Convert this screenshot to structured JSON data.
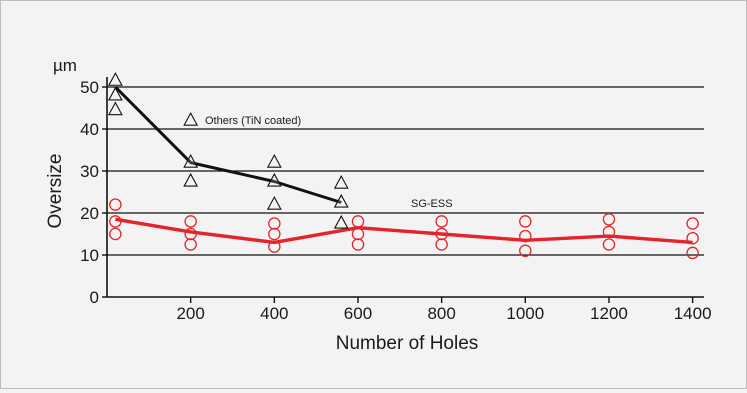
{
  "chart_data": {
    "type": "line",
    "title": "",
    "unit_label": "µm",
    "xlabel": "Number of Holes",
    "ylabel": "Oversize",
    "xlim": [
      0,
      1420
    ],
    "ylim": [
      0,
      55
    ],
    "xticks": [
      200,
      400,
      600,
      800,
      1000,
      1200,
      1400
    ],
    "yticks": [
      0,
      10,
      20,
      30,
      40,
      50
    ],
    "gridlines_y": [
      10,
      20,
      30,
      40,
      50
    ],
    "grid": "horizontal",
    "colors": {
      "others": "#111111",
      "sgess": "#e5232a"
    },
    "series": [
      {
        "name": "Others (TiN coated)",
        "color": "#111111",
        "marker": "triangle",
        "line": [
          [
            20,
            50
          ],
          [
            200,
            32
          ],
          [
            400,
            27.5
          ],
          [
            560,
            22.5
          ]
        ],
        "points": [
          [
            20,
            51.5
          ],
          [
            20,
            48
          ],
          [
            20,
            44.5
          ],
          [
            200,
            42
          ],
          [
            200,
            32
          ],
          [
            200,
            27.5
          ],
          [
            400,
            32
          ],
          [
            400,
            27.5
          ],
          [
            400,
            22
          ],
          [
            560,
            27
          ],
          [
            560,
            22.5
          ],
          [
            560,
            17.5
          ]
        ]
      },
      {
        "name": "SG-ESS",
        "color": "#e5232a",
        "marker": "circle",
        "line": [
          [
            20,
            18.5
          ],
          [
            200,
            15.5
          ],
          [
            400,
            13
          ],
          [
            600,
            16.5
          ],
          [
            800,
            15
          ],
          [
            1000,
            13.5
          ],
          [
            1200,
            14.5
          ],
          [
            1400,
            13
          ]
        ],
        "points": [
          [
            20,
            22
          ],
          [
            20,
            18
          ],
          [
            20,
            15
          ],
          [
            200,
            18
          ],
          [
            200,
            15
          ],
          [
            200,
            12.5
          ],
          [
            400,
            17.5
          ],
          [
            400,
            15
          ],
          [
            400,
            12
          ],
          [
            600,
            18
          ],
          [
            600,
            15
          ],
          [
            600,
            12.5
          ],
          [
            800,
            18
          ],
          [
            800,
            15
          ],
          [
            800,
            12.5
          ],
          [
            1000,
            18
          ],
          [
            1000,
            14.5
          ],
          [
            1000,
            11
          ],
          [
            1200,
            18.5
          ],
          [
            1200,
            15.5
          ],
          [
            1200,
            12.5
          ],
          [
            1400,
            17.5
          ],
          [
            1400,
            14
          ],
          [
            1400,
            10.5
          ]
        ]
      }
    ],
    "annotations": [
      {
        "text": "Others (TiN coated)",
        "x": 200,
        "y": 42,
        "series": 0
      },
      {
        "text": "SG-ESS",
        "x": 600,
        "y": 23
      }
    ]
  }
}
